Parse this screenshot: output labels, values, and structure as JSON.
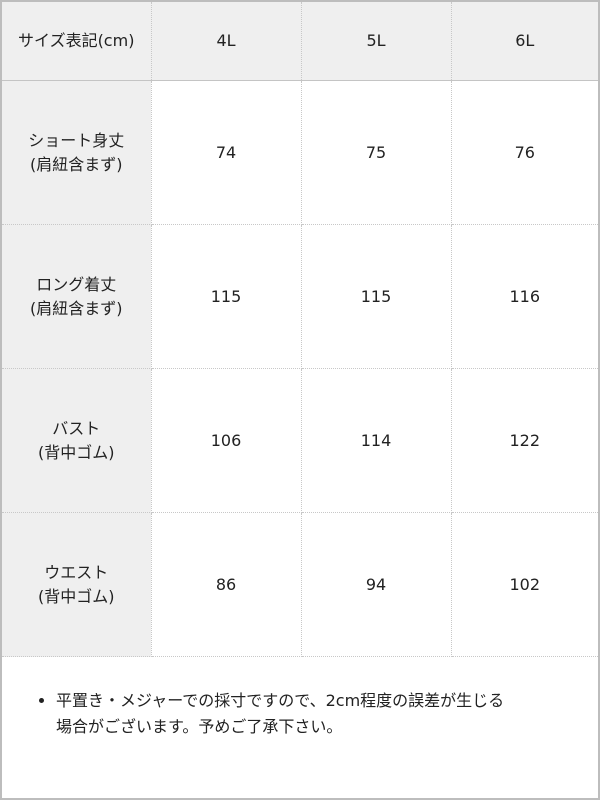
{
  "table": {
    "header": [
      "サイズ表記(cm)",
      "4L",
      "5L",
      "6L"
    ],
    "rows": [
      {
        "label": [
          "ショート身丈",
          "(肩紐含まず)"
        ],
        "values": [
          "74",
          "75",
          "76"
        ]
      },
      {
        "label": [
          "ロング着丈",
          "(肩紐含まず)"
        ],
        "values": [
          "115",
          "115",
          "116"
        ]
      },
      {
        "label": [
          "バスト",
          "(背中ゴム)"
        ],
        "values": [
          "106",
          "114",
          "122"
        ]
      },
      {
        "label": [
          "ウエスト",
          "(背中ゴム)"
        ],
        "values": [
          "86",
          "94",
          "102"
        ]
      }
    ]
  },
  "note": {
    "lines": [
      "平置き・メジャーでの採寸ですので、2cm程度の誤差が生じる",
      "場合がございます。予めご了承下さい。"
    ]
  },
  "colors": {
    "header_bg": "#efefef",
    "border": "#bdbdbd"
  }
}
